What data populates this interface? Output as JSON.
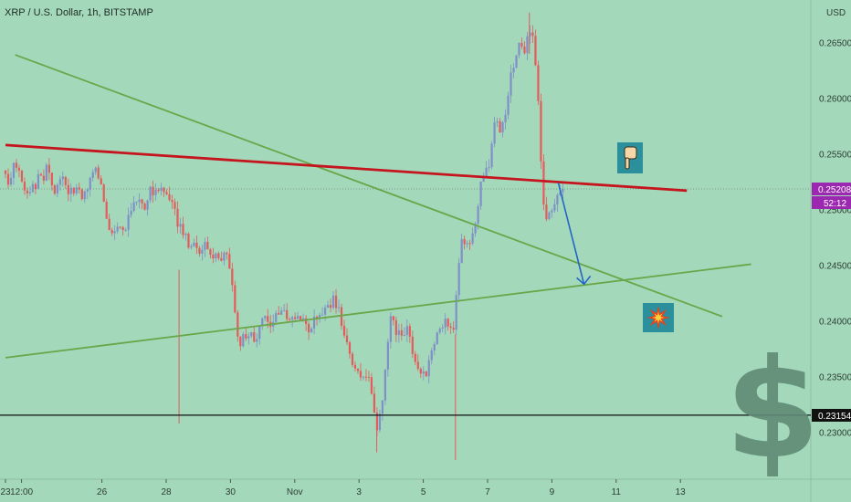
{
  "chart_data": {
    "type": "candlestick",
    "title": "XRP / U.S. Dollar, 1h, BITSTAMP",
    "currency": "USD",
    "ylim": [
      0.2262,
      0.2685
    ],
    "y_ticks": [
      "0.26500",
      "0.26000",
      "0.25500",
      "0.25000",
      "0.24500",
      "0.24000",
      "0.23500",
      "0.23000"
    ],
    "y_tick_values": [
      0.265,
      0.26,
      0.255,
      0.25,
      0.245,
      0.24,
      0.235,
      0.23
    ],
    "x_ticks": [
      "23",
      "12:00",
      "26",
      "28",
      "30",
      "Nov",
      "3",
      "5",
      "7",
      "9",
      "11",
      "13"
    ],
    "x_tick_days": [
      0,
      0.5,
      3,
      5,
      7,
      9,
      11,
      13,
      15,
      17,
      19,
      21
    ],
    "bar_days": 15.4,
    "price": {
      "current": "0.25208",
      "countdown": "52:12",
      "current_value": 0.25208,
      "horizontal_level": "0.23154",
      "horizontal_value": 0.23154
    },
    "series_path": [
      [
        0,
        0.2535
      ],
      [
        0.1,
        0.2522
      ],
      [
        0.28,
        0.2546
      ],
      [
        0.45,
        0.2532
      ],
      [
        0.65,
        0.2515
      ],
      [
        0.85,
        0.2518
      ],
      [
        1.0,
        0.2528
      ],
      [
        1.12,
        0.2525
      ],
      [
        1.3,
        0.2538
      ],
      [
        1.45,
        0.2524
      ],
      [
        1.6,
        0.2516
      ],
      [
        1.8,
        0.2528
      ],
      [
        2.0,
        0.2514
      ],
      [
        2.2,
        0.2522
      ],
      [
        2.4,
        0.2513
      ],
      [
        2.55,
        0.2518
      ],
      [
        2.7,
        0.2538
      ],
      [
        2.85,
        0.2532
      ],
      [
        3.0,
        0.2515
      ],
      [
        3.15,
        0.2493
      ],
      [
        3.3,
        0.2478
      ],
      [
        3.5,
        0.2487
      ],
      [
        3.7,
        0.2482
      ],
      [
        3.9,
        0.2498
      ],
      [
        4.1,
        0.2513
      ],
      [
        4.3,
        0.2503
      ],
      [
        4.55,
        0.2518
      ],
      [
        4.8,
        0.2521
      ],
      [
        5.0,
        0.2513
      ],
      [
        5.2,
        0.2502
      ],
      [
        5.4,
        0.2485
      ],
      [
        5.6,
        0.2475
      ],
      [
        5.8,
        0.2467
      ],
      [
        6.0,
        0.2463
      ],
      [
        6.2,
        0.2468
      ],
      [
        6.4,
        0.2462
      ],
      [
        6.6,
        0.2455
      ],
      [
        6.8,
        0.2461
      ],
      [
        7.0,
        0.2446
      ],
      [
        7.1,
        0.2423
      ],
      [
        7.2,
        0.2395
      ],
      [
        7.3,
        0.2378
      ],
      [
        7.45,
        0.2389
      ],
      [
        7.6,
        0.2392
      ],
      [
        7.75,
        0.2384
      ],
      [
        7.9,
        0.2391
      ],
      [
        8.05,
        0.2402
      ],
      [
        8.2,
        0.2394
      ],
      [
        8.4,
        0.2401
      ],
      [
        8.6,
        0.2412
      ],
      [
        8.8,
        0.2404
      ],
      [
        9.0,
        0.2398
      ],
      [
        9.2,
        0.2402
      ],
      [
        9.4,
        0.2394
      ],
      [
        9.6,
        0.2399
      ],
      [
        9.8,
        0.2409
      ],
      [
        10.0,
        0.2412
      ],
      [
        10.2,
        0.2418
      ],
      [
        10.4,
        0.2405
      ],
      [
        10.6,
        0.2378
      ],
      [
        10.8,
        0.2362
      ],
      [
        11.0,
        0.2351
      ],
      [
        11.15,
        0.2346
      ],
      [
        11.3,
        0.2348
      ],
      [
        11.45,
        0.2318
      ],
      [
        11.55,
        0.2302
      ],
      [
        11.7,
        0.2318
      ],
      [
        11.85,
        0.2368
      ],
      [
        12.0,
        0.2409
      ],
      [
        12.15,
        0.2388
      ],
      [
        12.3,
        0.2385
      ],
      [
        12.45,
        0.2394
      ],
      [
        12.6,
        0.2381
      ],
      [
        12.75,
        0.2367
      ],
      [
        12.9,
        0.2353
      ],
      [
        13.05,
        0.2348
      ],
      [
        13.2,
        0.2368
      ],
      [
        13.35,
        0.2382
      ],
      [
        13.5,
        0.2392
      ],
      [
        13.65,
        0.2401
      ],
      [
        13.8,
        0.2397
      ],
      [
        13.95,
        0.2388
      ],
      [
        14.05,
        0.2442
      ],
      [
        14.2,
        0.2472
      ],
      [
        14.35,
        0.2467
      ],
      [
        14.5,
        0.2478
      ],
      [
        14.65,
        0.2491
      ],
      [
        14.8,
        0.2522
      ],
      [
        14.95,
        0.2536
      ],
      [
        15.1,
        0.2545
      ],
      [
        15.25,
        0.2591
      ],
      [
        15.4,
        0.2566
      ],
      [
        15.55,
        0.2582
      ],
      [
        15.7,
        0.2614
      ],
      [
        15.85,
        0.2638
      ],
      [
        16.0,
        0.2656
      ],
      [
        16.15,
        0.2645
      ],
      [
        16.3,
        0.2661
      ],
      [
        16.45,
        0.2653
      ],
      [
        16.55,
        0.2608
      ],
      [
        16.65,
        0.2545
      ],
      [
        16.75,
        0.2503
      ],
      [
        16.85,
        0.2492
      ],
      [
        16.95,
        0.2508
      ],
      [
        17.05,
        0.2498
      ],
      [
        17.15,
        0.2512
      ],
      [
        17.25,
        0.2519
      ],
      [
        17.35,
        0.2513
      ],
      [
        17.42,
        0.252
      ]
    ],
    "annotations": {
      "red_resistance": [
        [
          0,
          0.2558
        ],
        [
          21.2,
          0.2517
        ]
      ],
      "green_descending": [
        [
          0.3,
          0.2639
        ],
        [
          22.3,
          0.2404
        ]
      ],
      "green_ascending": [
        [
          0,
          0.2367
        ],
        [
          23.2,
          0.2451
        ]
      ],
      "forecast_arrow": [
        [
          17.2,
          0.2524
        ],
        [
          18.0,
          0.2433
        ]
      ],
      "hand_icon": "pointing-down-hand",
      "explosion_icon": "collision",
      "watermark": "$"
    },
    "colors": {
      "background": "#a3d9ba",
      "candle_up": "#7f8fc8",
      "candle_down": "#e55a5a",
      "resistance": "#c5141d",
      "trendline": "#6aa64a",
      "arrow": "#2466c4",
      "price_tag": "#9c27b0",
      "watermark": "#5f8a75"
    }
  }
}
